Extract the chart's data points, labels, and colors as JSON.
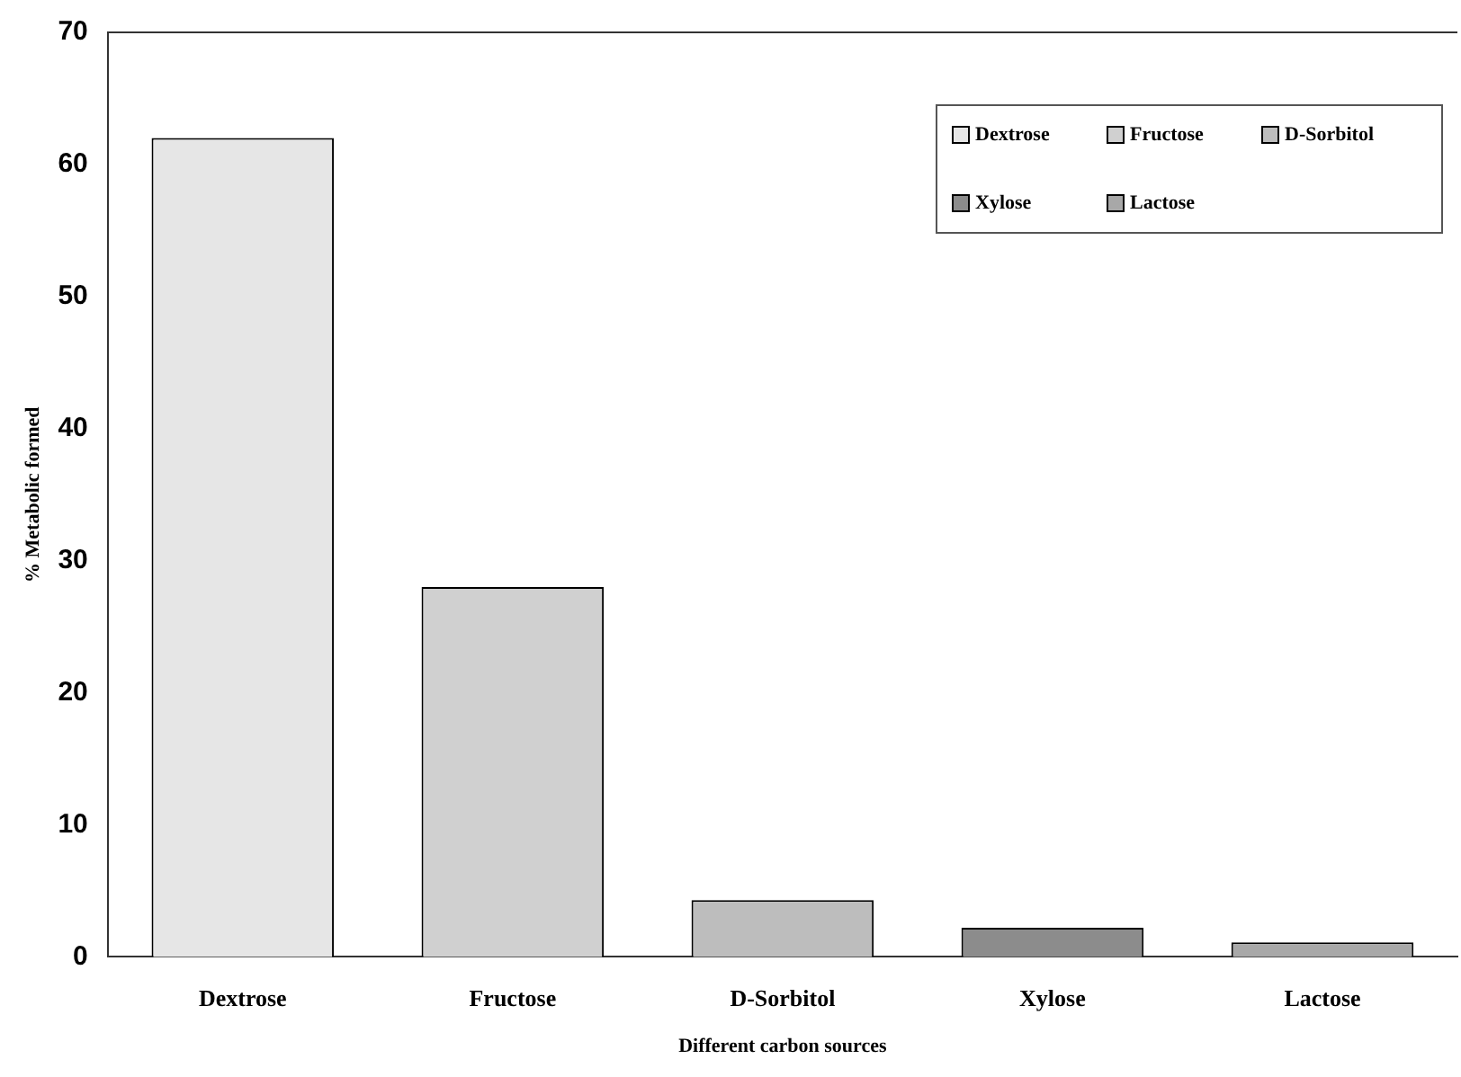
{
  "chart_data": {
    "type": "bar",
    "xlabel": "Different carbon sources",
    "ylabel": "% Metabolic formed",
    "categories": [
      "Dextrose",
      "Fructose",
      "D-Sorbitol",
      "Xylose",
      "Lactose"
    ],
    "series": [
      {
        "name": "Dextrose",
        "color": "#e6e6e6",
        "values": [
          62,
          null,
          null,
          null,
          null
        ]
      },
      {
        "name": "Fructose",
        "color": "#d0d0d0",
        "values": [
          null,
          28,
          null,
          null,
          null
        ]
      },
      {
        "name": "D-Sorbitol",
        "color": "#bdbdbd",
        "values": [
          null,
          null,
          4.3,
          null,
          null
        ]
      },
      {
        "name": "Xylose",
        "color": "#8c8c8c",
        "values": [
          null,
          null,
          null,
          2.2,
          null
        ]
      },
      {
        "name": "Lactose",
        "color": "#a8a8a8",
        "values": [
          null,
          null,
          null,
          null,
          1.1
        ]
      }
    ],
    "ylim": [
      0,
      70
    ],
    "yticks": [
      0,
      10,
      20,
      30,
      40,
      50,
      60,
      70
    ],
    "grid": false,
    "legend": "top right"
  }
}
